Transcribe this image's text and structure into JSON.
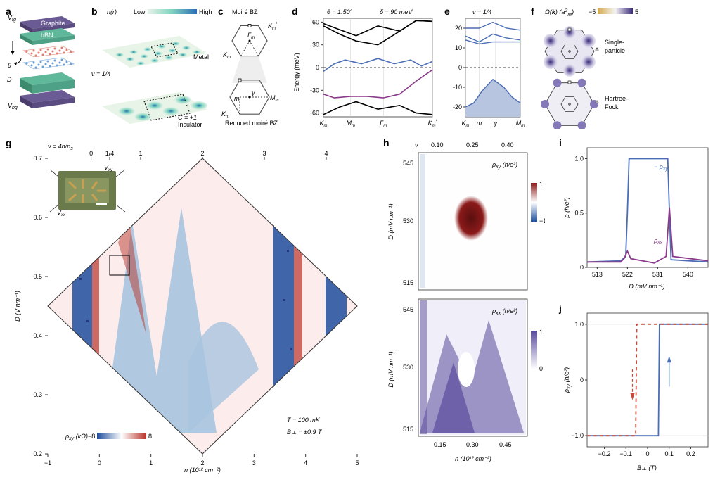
{
  "panel_a": {
    "label": "a",
    "layers": [
      "Graphite",
      "hBN"
    ],
    "topgate": "V",
    "topgate_sub": "tg",
    "bottomgate": "V",
    "bottomgate_sub": "bg",
    "angle": "θ",
    "displacement": "D",
    "colors": {
      "graphite": "#6b5b95",
      "hbn": "#5fb89a",
      "layer1": "#e07b6e",
      "layer2": "#6a9fd4"
    }
  },
  "panel_b": {
    "label": "b",
    "title": "n(r)",
    "cbar_low": "Low",
    "cbar_high": "High",
    "metal_label": "Metal",
    "nu_label": "ν = 1/4",
    "insulator_label": "C = +1",
    "insulator_label2": "Insulator",
    "cbar_colors": [
      "#e8f4e8",
      "#7dd3c0",
      "#2a6db5"
    ]
  },
  "panel_c": {
    "label": "c",
    "title": "Moiré BZ",
    "reduced": "Reduced moiré BZ",
    "gamma_m": "Γ",
    "gamma_m_sub": "m",
    "K_m": "K",
    "K_m_sub": "m",
    "K_m_prime": "K",
    "K_m_prime_sub": "m",
    "K_m_prime_sup": "′",
    "M_m": "M",
    "M_m_sub": "m",
    "small_m": "m",
    "small_gamma": "γ",
    "hex_stroke": "#555555"
  },
  "panel_d": {
    "label": "d",
    "title_theta": "θ = 1.50°",
    "title_delta": "δ = 90 meV",
    "ylabel": "Energy (meV)",
    "xticks": [
      "K",
      "M",
      "Γ",
      "K"
    ],
    "xtick_subs": [
      "m",
      "m",
      "m",
      "m"
    ],
    "xtick_sup": [
      "",
      "",
      "",
      "′"
    ],
    "yticks": [
      -60,
      -30,
      0,
      30,
      60
    ],
    "ylim": [
      -65,
      65
    ],
    "band_colors": {
      "black": "#000000",
      "blue": "#4a6db5",
      "purple": "#8b3a8b"
    },
    "bands": {
      "upper1": [
        [
          0,
          58
        ],
        [
          0.15,
          50
        ],
        [
          0.3,
          42
        ],
        [
          0.5,
          55
        ],
        [
          0.7,
          48
        ],
        [
          0.85,
          62
        ],
        [
          1,
          61
        ]
      ],
      "upper2": [
        [
          0,
          55
        ],
        [
          0.15,
          44
        ],
        [
          0.3,
          35
        ],
        [
          0.5,
          30
        ],
        [
          0.7,
          48
        ],
        [
          0.85,
          62
        ],
        [
          1,
          61
        ]
      ],
      "blue": [
        [
          0,
          -5
        ],
        [
          0.1,
          5
        ],
        [
          0.2,
          10
        ],
        [
          0.35,
          5
        ],
        [
          0.5,
          12
        ],
        [
          0.65,
          5
        ],
        [
          0.8,
          10
        ],
        [
          0.9,
          2
        ],
        [
          1,
          8
        ]
      ],
      "purple": [
        [
          0,
          -35
        ],
        [
          0.1,
          -40
        ],
        [
          0.25,
          -38
        ],
        [
          0.4,
          -38
        ],
        [
          0.55,
          -40
        ],
        [
          0.7,
          -35
        ],
        [
          0.85,
          -18
        ],
        [
          1,
          -3
        ]
      ],
      "lower": [
        [
          0,
          -62
        ],
        [
          0.15,
          -52
        ],
        [
          0.3,
          -45
        ],
        [
          0.5,
          -55
        ],
        [
          0.7,
          -50
        ],
        [
          0.85,
          -60
        ],
        [
          1,
          -62
        ]
      ]
    }
  },
  "panel_e": {
    "label": "e",
    "title": "ν = 1/4",
    "xticks": [
      "K",
      "m",
      "γ",
      "M"
    ],
    "xtick_subs": [
      "m",
      "",
      "",
      "m"
    ],
    "yticks": [
      -20,
      -10,
      0,
      10,
      20
    ],
    "ylim": [
      -25,
      25
    ],
    "bands": {
      "top1": [
        [
          0,
          20
        ],
        [
          0.25,
          20
        ],
        [
          0.5,
          23
        ],
        [
          0.75,
          20
        ],
        [
          1,
          19
        ]
      ],
      "top2": [
        [
          0,
          16
        ],
        [
          0.25,
          13
        ],
        [
          0.5,
          17
        ],
        [
          0.75,
          15
        ],
        [
          1,
          14
        ]
      ],
      "top3": [
        [
          0,
          14
        ],
        [
          0.25,
          12
        ],
        [
          0.5,
          13
        ],
        [
          0.75,
          13
        ],
        [
          1,
          13
        ]
      ],
      "filled": [
        [
          0,
          -20
        ],
        [
          0.15,
          -18
        ],
        [
          0.3,
          -12
        ],
        [
          0.5,
          -6
        ],
        [
          0.7,
          -10
        ],
        [
          0.85,
          -15
        ],
        [
          1,
          -18
        ]
      ]
    },
    "fill_color": "#b8c5e0",
    "line_color": "#4a6db5"
  },
  "panel_f": {
    "label": "f",
    "title": "Ω(k) (a²_M)",
    "cbar_min": "−5",
    "cbar_max": "5",
    "label1": "Single-particle",
    "label2": "Hartree–Fock",
    "cbar_colors": [
      "#d4a84a",
      "#ffffff",
      "#3b2a7a"
    ]
  },
  "panel_g": {
    "label": "g",
    "top_axis": "ν = 4n/n",
    "top_axis_sub": "s",
    "top_ticks": [
      "0",
      "1/4",
      "1",
      "2",
      "3",
      "4"
    ],
    "top_tick_pos": [
      0.14,
      0.2,
      0.3,
      0.5,
      0.7,
      0.9
    ],
    "ylabel": "D (V nm⁻¹)",
    "xlabel": "n (10¹² cm⁻²)",
    "xticks": [
      "−1",
      "0",
      "1",
      "2",
      "3",
      "4",
      "5"
    ],
    "yticks": [
      "0.2",
      "0.3",
      "0.4",
      "0.5",
      "0.6",
      "0.7"
    ],
    "cbar_label": "ρ",
    "cbar_label_sub": "xy",
    "cbar_unit": " (kΩ)",
    "cbar_min": "−8",
    "cbar_max": "8",
    "temp": "T = 100 mK",
    "field": "B⊥ = ±0.9 T",
    "inset_Vxy": "V",
    "inset_Vxy_sub": "xy",
    "inset_Vxx": "V",
    "inset_Vxx_sub": "xx",
    "colormap": [
      "#1f4e9c",
      "#ffffff",
      "#b8332a"
    ]
  },
  "panel_h": {
    "label": "h",
    "top_label": "ν",
    "top_ticks": [
      "0.10",
      "0.25",
      "0.40"
    ],
    "ylabel": "D (mV nm⁻¹)",
    "yticks": [
      "515",
      "530",
      "545"
    ],
    "xlabel": "n (10¹² cm⁻²)",
    "xticks": [
      "0.15",
      "0.30",
      "0.45"
    ],
    "top_panel_label": "ρ",
    "top_panel_sub": "xy",
    "top_panel_unit": " (h/e²)",
    "top_cbar_min": "−1",
    "top_cbar_max": "1",
    "bot_panel_label": "ρ",
    "bot_panel_sub": "xx",
    "bot_panel_unit": " (h/e²)",
    "bot_cbar_min": "0",
    "bot_cbar_max": "1",
    "top_colormap": [
      "#1f4e9c",
      "#ffffff",
      "#8b1a1a"
    ],
    "bot_colormap": [
      "#ffffff",
      "#5a4a9c"
    ]
  },
  "panel_i": {
    "label": "i",
    "ylabel": "ρ (h/e²)",
    "xlabel": "D (mV nm⁻¹)",
    "xticks": [
      "513",
      "522",
      "531",
      "540"
    ],
    "yticks": [
      "0",
      "0.5",
      "1.0"
    ],
    "ylim": [
      0,
      1.1
    ],
    "xlim": [
      510,
      546
    ],
    "legend_rhoxy": "− ρ",
    "legend_rhoxy_sub": "xy",
    "legend_rhoxx": "ρ",
    "legend_rhoxx_sub": "xx",
    "rhoxy_color": "#4a6db5",
    "rhoxx_color": "#8b3a8b",
    "rhoxy_data": [
      [
        510,
        0.05
      ],
      [
        520,
        0.06
      ],
      [
        521.5,
        0.1
      ],
      [
        522,
        0.5
      ],
      [
        522.5,
        1.0
      ],
      [
        530,
        1.0
      ],
      [
        534,
        1.0
      ],
      [
        534.5,
        0.5
      ],
      [
        535,
        0.07
      ],
      [
        546,
        0.05
      ]
    ],
    "rhoxx_data": [
      [
        510,
        0.05
      ],
      [
        520,
        0.05
      ],
      [
        521,
        0.08
      ],
      [
        522,
        0.15
      ],
      [
        523,
        0.08
      ],
      [
        530,
        0.04
      ],
      [
        533.5,
        0.1
      ],
      [
        534.5,
        0.55
      ],
      [
        535.5,
        0.1
      ],
      [
        546,
        0.06
      ]
    ]
  },
  "panel_j": {
    "label": "j",
    "ylabel": "ρ",
    "ylabel_sub": "xy",
    "ylabel_unit": " (h/e²)",
    "xlabel": "B⊥ (T)",
    "xticks": [
      "−0.2",
      "−0.1",
      "0",
      "0.1",
      "0.2"
    ],
    "yticks": [
      "−1.0",
      "0",
      "1.0"
    ],
    "ylim": [
      -1.2,
      1.2
    ],
    "xlim": [
      -0.28,
      0.28
    ],
    "up_color": "#4a6db5",
    "down_color": "#c94a3b",
    "up_data": [
      [
        -0.28,
        -1.0
      ],
      [
        0.05,
        -1.0
      ],
      [
        0.055,
        1.0
      ],
      [
        0.28,
        1.0
      ]
    ],
    "down_data": [
      [
        0.28,
        1.0
      ],
      [
        -0.05,
        1.0
      ],
      [
        -0.055,
        -1.0
      ],
      [
        -0.28,
        -1.0
      ]
    ]
  }
}
